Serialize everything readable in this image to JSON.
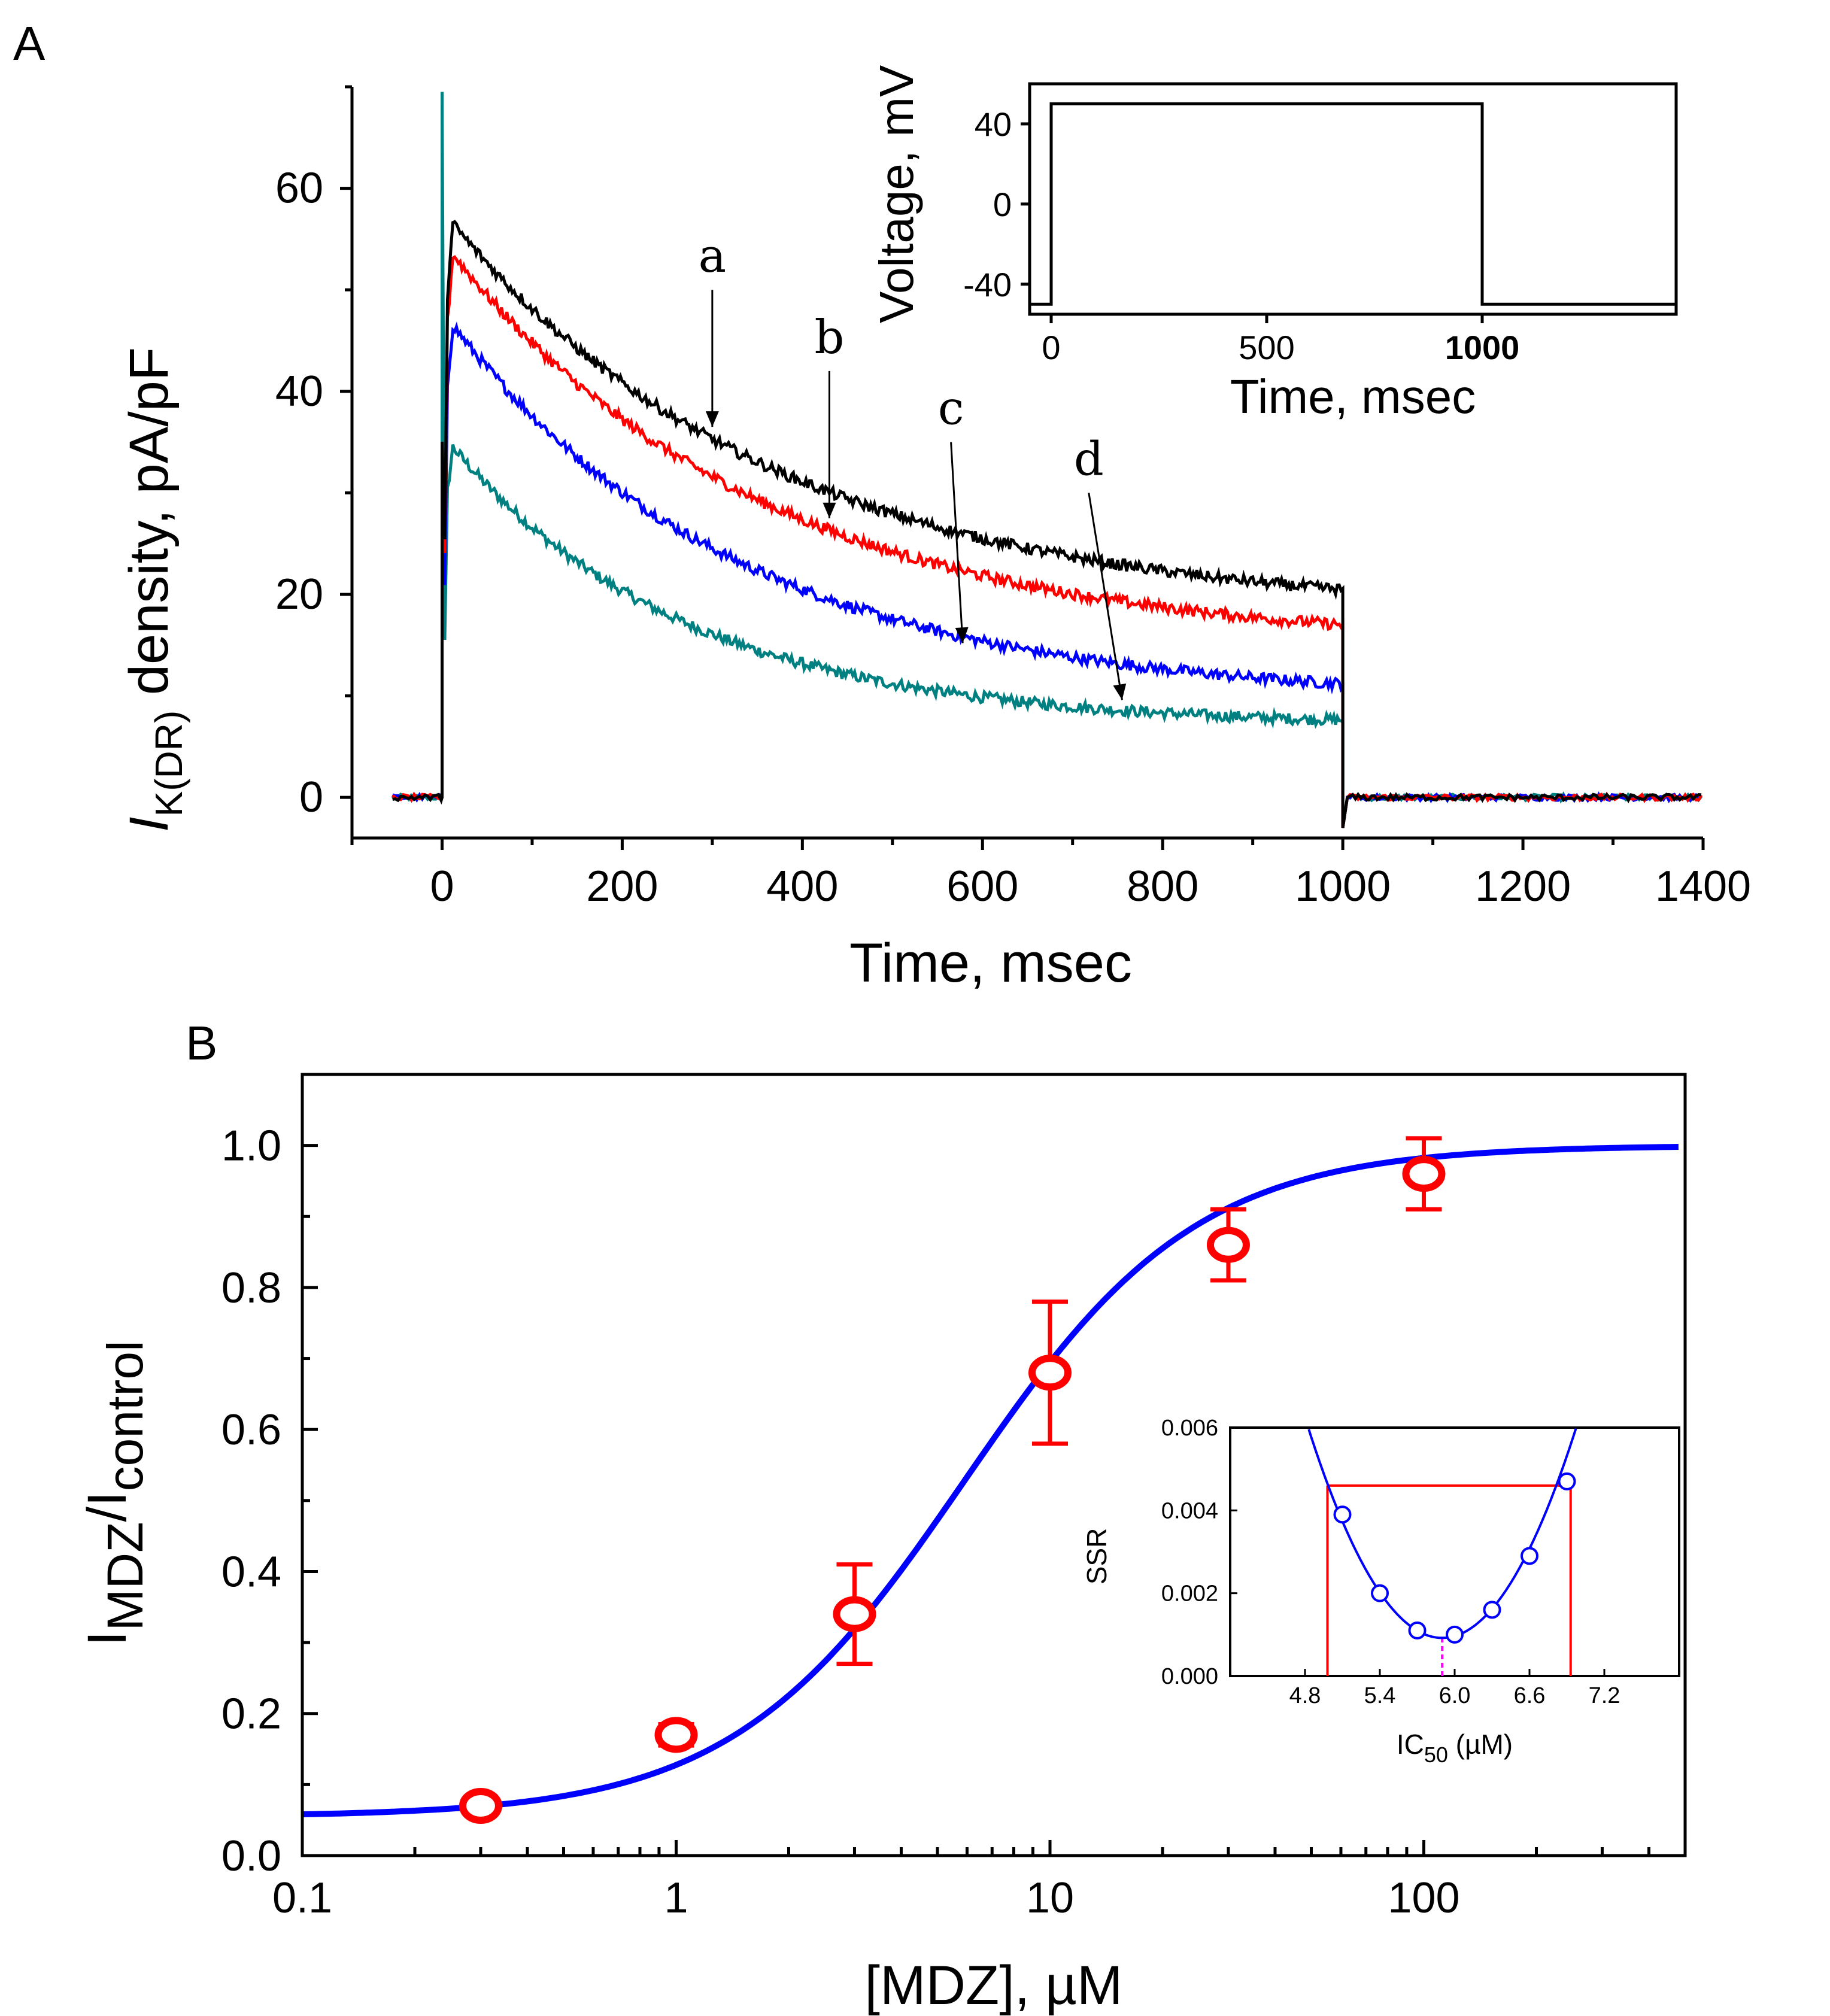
{
  "chart_data": [
    {
      "panel": "A",
      "type": "line",
      "xlabel": "Time, msec",
      "ylabel_main": "I",
      "ylabel_sub": "K(DR)",
      "ylabel_rest": " density, pA/pF",
      "xlim": [
        -100,
        1400
      ],
      "ylim": [
        -4,
        70
      ],
      "xticks": [
        0,
        200,
        400,
        600,
        800,
        1000,
        1200,
        1400
      ],
      "yticks": [
        0,
        20,
        40,
        60
      ],
      "series": [
        {
          "name": "a",
          "color": "#000000",
          "peak": 56.5,
          "end": 18.0,
          "tau": 360,
          "step_end": 18.5
        },
        {
          "name": "b",
          "color": "#ff0000",
          "peak": 53.5,
          "end": 14.8,
          "tau": 345,
          "step_end": 15.5
        },
        {
          "name": "c",
          "color": "#0000ff",
          "peak": 46.5,
          "end": 9.5,
          "tau": 320,
          "step_end": 10.0
        },
        {
          "name": "d",
          "color": "#008080",
          "peak": 34.5,
          "end": 7.0,
          "tau": 260,
          "step_end": 7.2
        }
      ],
      "annotations": [
        {
          "label": "a",
          "from": [
            300,
            50
          ],
          "to": [
            300,
            36.5
          ]
        },
        {
          "label": "b",
          "from": [
            430,
            42
          ],
          "to": [
            430,
            27.5
          ]
        },
        {
          "label": "c",
          "from": [
            565,
            35
          ],
          "to": [
            578,
            15.2
          ]
        },
        {
          "label": "d",
          "from": [
            718,
            30
          ],
          "to": [
            755,
            9.6
          ]
        }
      ],
      "inset": {
        "type": "line",
        "xlabel": "Time, msec",
        "ylabel": "Voltage, mV",
        "xlim": [
          -50,
          1450
        ],
        "ylim": [
          -55,
          60
        ],
        "xticks": [
          0,
          500,
          1000
        ],
        "yticks": [
          -40,
          0,
          40
        ],
        "x": [
          -50,
          0,
          0,
          1000,
          1000,
          1450
        ],
        "y": [
          -50,
          -50,
          50,
          50,
          -50,
          -50
        ]
      }
    },
    {
      "panel": "B",
      "type": "scatter",
      "xlabel": "[MDZ], µM",
      "ylabel_main": "I",
      "ylabel_sub1": "MDZ",
      "ylabel_slash": "/I",
      "ylabel_sub2": "control",
      "xscale": "log",
      "xlim": [
        0.1,
        500
      ],
      "ylim": [
        0,
        1.1
      ],
      "xticks": [
        0.1,
        1,
        10,
        100
      ],
      "xtick_labels": [
        "0.1",
        "1",
        "10",
        "100"
      ],
      "yticks": [
        0,
        0.2,
        0.4,
        0.6,
        0.8,
        1.0
      ],
      "ytick_labels": [
        "0.0",
        "0.2",
        "0.4",
        "0.6",
        "0.8",
        "1.0"
      ],
      "points": {
        "x": [
          0.3,
          1,
          3,
          10,
          30,
          100
        ],
        "y": [
          0.07,
          0.17,
          0.34,
          0.68,
          0.86,
          0.96
        ],
        "err": [
          0.01,
          0.015,
          0.07,
          0.1,
          0.05,
          0.05
        ],
        "color": "#ff0000"
      },
      "fit": {
        "color": "#0000ff",
        "bottom": 0.055,
        "top": 1.0,
        "ic50": 5.9,
        "hill": 1.4
      },
      "inset": {
        "type": "line",
        "xlabel_main": "IC",
        "xlabel_sub": "50",
        "xlabel_rest": " (µM)",
        "ylabel": "SSR",
        "xlim": [
          4.2,
          7.8
        ],
        "ylim": [
          0,
          0.006
        ],
        "xticks": [
          4.8,
          5.4,
          6.0,
          6.6,
          7.2
        ],
        "xtick_labels": [
          "4.8",
          "5.4",
          "6.0",
          "6.6",
          "7.2"
        ],
        "yticks": [
          0,
          0.002,
          0.004,
          0.006
        ],
        "ytick_labels": [
          "0.000",
          "0.002",
          "0.004",
          "0.006"
        ],
        "points_x": [
          5.1,
          5.4,
          5.7,
          6.0,
          6.3,
          6.6,
          6.9
        ],
        "points_y": [
          0.0039,
          0.002,
          0.0011,
          0.001,
          0.0016,
          0.0029,
          0.0047
        ],
        "curve_min_x": 5.9,
        "curve_min_y": 0.00092,
        "curve_k": 0.0044,
        "threshold": 0.0046,
        "ci_low": 4.98,
        "ci_high": 6.93,
        "fit_color": "#0000ff",
        "ci_color": "#ff0000",
        "marker_color": "#ff00ff"
      }
    }
  ]
}
